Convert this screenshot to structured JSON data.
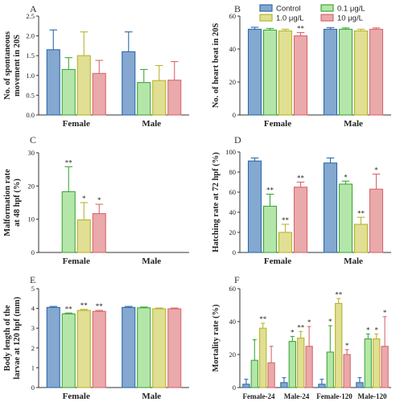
{
  "legend": [
    {
      "label": "Control",
      "fill": "#84a8d0",
      "stroke": "#2e6aa9"
    },
    {
      "label": "0.1 μg/L",
      "fill": "#b5e6a9",
      "stroke": "#3ea83a"
    },
    {
      "label": "1.0 μg/L",
      "fill": "#e0df93",
      "stroke": "#b7b52c"
    },
    {
      "label": "10 μg/L",
      "fill": "#eaa9ab",
      "stroke": "#d8686d"
    }
  ],
  "chart_data": [
    {
      "panel": "A",
      "type": "bar",
      "ylabel": "No. of spontaneous\nmovement in 20S",
      "ylim": [
        0,
        2.5
      ],
      "ticks": [
        "0.0",
        "0.5",
        "1.0",
        "1.5",
        "2.0",
        "2.5"
      ],
      "categories": [
        "Female",
        "Male"
      ],
      "series": [
        {
          "name": "Control",
          "values": [
            1.65,
            1.6
          ],
          "err": [
            0.5,
            0.5
          ],
          "sig": [
            "",
            ""
          ]
        },
        {
          "name": "0.1 μg/L",
          "values": [
            1.15,
            0.82
          ],
          "err": [
            0.3,
            0.33
          ],
          "sig": [
            "",
            ""
          ]
        },
        {
          "name": "1.0 μg/L",
          "values": [
            1.5,
            0.87
          ],
          "err": [
            0.6,
            0.38
          ],
          "sig": [
            "",
            ""
          ]
        },
        {
          "name": "10 μg/L",
          "values": [
            1.05,
            0.88
          ],
          "err": [
            0.33,
            0.47
          ],
          "sig": [
            "",
            ""
          ]
        }
      ]
    },
    {
      "panel": "B",
      "type": "bar",
      "ylabel": "No. of heart beat in 20S",
      "ylim": [
        0,
        60
      ],
      "ticks": [
        "0",
        "20",
        "40",
        "60"
      ],
      "categories": [
        "Female",
        "Male"
      ],
      "series": [
        {
          "name": "Control",
          "values": [
            52,
            52
          ],
          "err": [
            1.2,
            1
          ],
          "sig": [
            "",
            ""
          ]
        },
        {
          "name": "0.1 μg/L",
          "values": [
            51.5,
            52
          ],
          "err": [
            1,
            0.8
          ],
          "sig": [
            "",
            ""
          ]
        },
        {
          "name": "1.0 μg/L",
          "values": [
            51,
            51
          ],
          "err": [
            1,
            1
          ],
          "sig": [
            "",
            ""
          ]
        },
        {
          "name": "10 μg/L",
          "values": [
            48,
            52
          ],
          "err": [
            2,
            0.8
          ],
          "sig": [
            "**",
            ""
          ]
        }
      ]
    },
    {
      "panel": "C",
      "type": "bar",
      "ylabel": "Malformation rate\nat 48 hpf (%)",
      "ylim": [
        0,
        30
      ],
      "ticks": [
        "0",
        "10",
        "20",
        "30"
      ],
      "categories": [
        "Female",
        "Male"
      ],
      "series": [
        {
          "name": "Control",
          "values": [
            0,
            0
          ],
          "err": [
            0,
            0
          ],
          "sig": [
            "",
            ""
          ]
        },
        {
          "name": "0.1 μg/L",
          "values": [
            18.3,
            0
          ],
          "err": [
            7.5,
            0
          ],
          "sig": [
            "**",
            ""
          ]
        },
        {
          "name": "1.0 μg/L",
          "values": [
            9.8,
            0
          ],
          "err": [
            5.2,
            0
          ],
          "sig": [
            "*",
            ""
          ]
        },
        {
          "name": "10 μg/L",
          "values": [
            11.7,
            0
          ],
          "err": [
            2.8,
            0
          ],
          "sig": [
            "*",
            ""
          ]
        }
      ]
    },
    {
      "panel": "D",
      "type": "bar",
      "ylabel": "Hatching rate at 72 hpf (%)",
      "ylim": [
        0,
        100
      ],
      "ticks": [
        "0",
        "20",
        "40",
        "60",
        "80",
        "100"
      ],
      "categories": [
        "Female",
        "Male"
      ],
      "series": [
        {
          "name": "Control",
          "values": [
            91,
            89
          ],
          "err": [
            3,
            5
          ],
          "sig": [
            "",
            ""
          ]
        },
        {
          "name": "0.1 μg/L",
          "values": [
            46,
            68
          ],
          "err": [
            12,
            3
          ],
          "sig": [
            "**",
            "*"
          ]
        },
        {
          "name": "1.0 μg/L",
          "values": [
            20,
            28
          ],
          "err": [
            8,
            7
          ],
          "sig": [
            "**",
            "**"
          ]
        },
        {
          "name": "10 μg/L",
          "values": [
            65,
            63
          ],
          "err": [
            5,
            15
          ],
          "sig": [
            "**",
            "*"
          ]
        }
      ]
    },
    {
      "panel": "E",
      "type": "bar",
      "ylabel": "Body length of the\nlarvae at 120 hpf (mm)",
      "ylim": [
        0,
        5
      ],
      "ticks": [
        "0",
        "1",
        "2",
        "3",
        "4",
        "5"
      ],
      "categories": [
        "Female",
        "Male"
      ],
      "series": [
        {
          "name": "Control",
          "values": [
            4.05,
            4.05
          ],
          "err": [
            0.05,
            0.05
          ],
          "sig": [
            "",
            ""
          ]
        },
        {
          "name": "0.1 μg/L",
          "values": [
            3.72,
            4.03
          ],
          "err": [
            0.05,
            0.04
          ],
          "sig": [
            "**",
            ""
          ]
        },
        {
          "name": "1.0 μg/L",
          "values": [
            3.9,
            3.98
          ],
          "err": [
            0.05,
            0.04
          ],
          "sig": [
            "**",
            ""
          ]
        },
        {
          "name": "10 μg/L",
          "values": [
            3.85,
            3.98
          ],
          "err": [
            0.05,
            0.04
          ],
          "sig": [
            "**",
            ""
          ]
        }
      ]
    },
    {
      "panel": "F",
      "type": "bar",
      "ylabel": "Mortality rate (%)",
      "ylim": [
        0,
        60
      ],
      "ticks": [
        "0",
        "20",
        "40",
        "60"
      ],
      "categories": [
        "Female-24",
        "Male-24",
        "Female-120",
        "Male-120"
      ],
      "series": [
        {
          "name": "Control",
          "values": [
            2,
            3,
            2,
            3
          ],
          "err": [
            3,
            3,
            3,
            3
          ],
          "sig": [
            "",
            "",
            "",
            ""
          ]
        },
        {
          "name": "0.1 μg/L",
          "values": [
            16.5,
            28,
            21.5,
            29.5
          ],
          "err": [
            12.5,
            3,
            16,
            3
          ],
          "sig": [
            "",
            "*",
            "*",
            "*"
          ]
        },
        {
          "name": "1.0 μg/L",
          "values": [
            36,
            30,
            51,
            29.5
          ],
          "err": [
            3,
            4,
            3,
            3
          ],
          "sig": [
            "**",
            "**",
            "**",
            "*"
          ]
        },
        {
          "name": "10 μg/L",
          "values": [
            15,
            25,
            20,
            25
          ],
          "err": [
            10,
            12,
            3,
            18
          ],
          "sig": [
            "",
            "*",
            "*",
            "*"
          ]
        }
      ]
    }
  ]
}
